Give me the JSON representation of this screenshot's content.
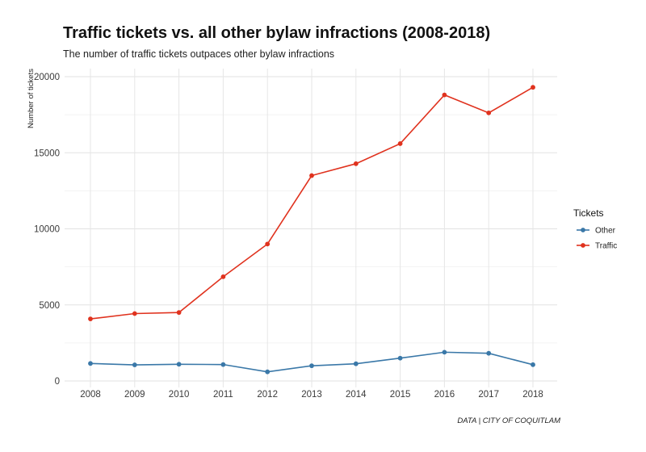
{
  "chart_data": {
    "type": "line",
    "title": "Traffic tickets vs. all other bylaw infractions (2008-2018)",
    "subtitle": "The number of traffic tickets outpaces other bylaw infractions",
    "xlabel": "",
    "ylabel": "Number of tickets",
    "caption": "DATA | CITY OF COQUITLAM",
    "x": [
      2008,
      2009,
      2010,
      2011,
      2012,
      2013,
      2014,
      2015,
      2016,
      2017,
      2018
    ],
    "ylim": [
      0,
      20000
    ],
    "yticks": [
      0,
      5000,
      10000,
      15000,
      20000
    ],
    "grid": true,
    "legend": {
      "title": "Tickets",
      "position": "right"
    },
    "series": [
      {
        "name": "Other",
        "color": "#3a78a8",
        "values": [
          1150,
          1060,
          1100,
          1080,
          600,
          1000,
          1130,
          1500,
          1890,
          1820,
          1070
        ]
      },
      {
        "name": "Traffic",
        "color": "#e0321e",
        "values": [
          4080,
          4430,
          4500,
          6850,
          9000,
          13500,
          14280,
          15600,
          18800,
          17620,
          19300
        ]
      }
    ]
  }
}
